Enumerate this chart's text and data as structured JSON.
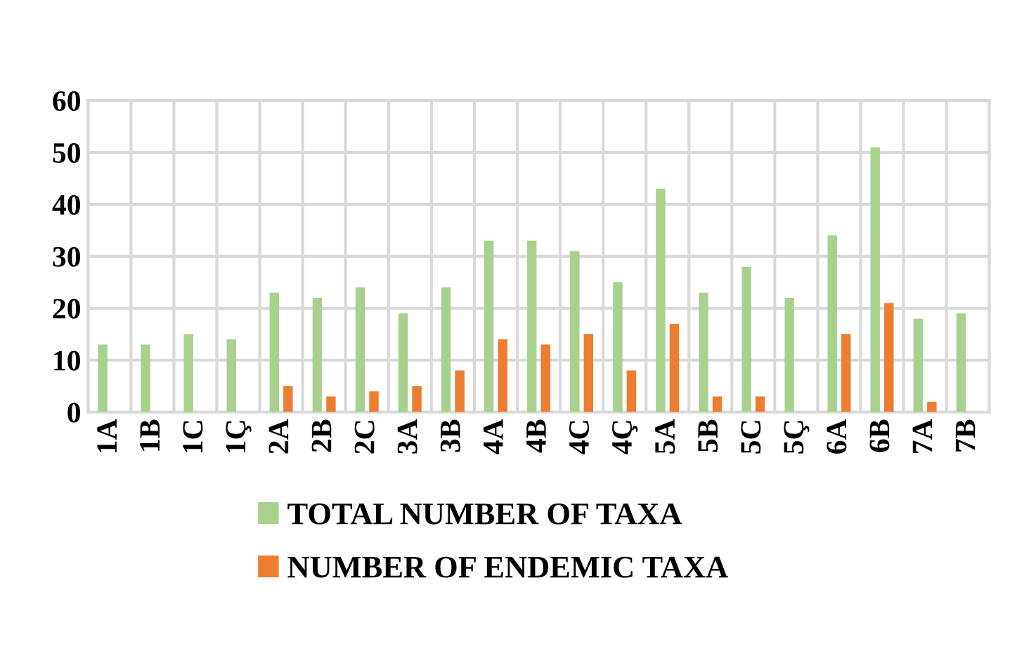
{
  "chart_data": {
    "type": "bar",
    "categories": [
      "1A",
      "1B",
      "1C",
      "1Ç",
      "2A",
      "2B",
      "2C",
      "3A",
      "3B",
      "4A",
      "4B",
      "4C",
      "4Ç",
      "5A",
      "5B",
      "5C",
      "5Ç",
      "6A",
      "6B",
      "7A",
      "7B"
    ],
    "series": [
      {
        "name": "TOTAL NUMBER OF TAXA",
        "color": "#a9d18e",
        "values": [
          13,
          13,
          15,
          14,
          23,
          22,
          24,
          19,
          24,
          33,
          33,
          31,
          25,
          43,
          23,
          28,
          22,
          34,
          51,
          18,
          19
        ]
      },
      {
        "name": "NUMBER OF ENDEMIC TAXA",
        "color": "#ed7d31",
        "values": [
          0,
          0,
          0,
          0,
          5,
          3,
          4,
          5,
          8,
          14,
          13,
          15,
          8,
          17,
          3,
          3,
          0,
          15,
          21,
          2,
          0
        ]
      }
    ],
    "ylim": [
      0,
      60
    ],
    "yticks": [
      0,
      10,
      20,
      30,
      40,
      50,
      60
    ],
    "grid": true,
    "legend": "bottom"
  }
}
